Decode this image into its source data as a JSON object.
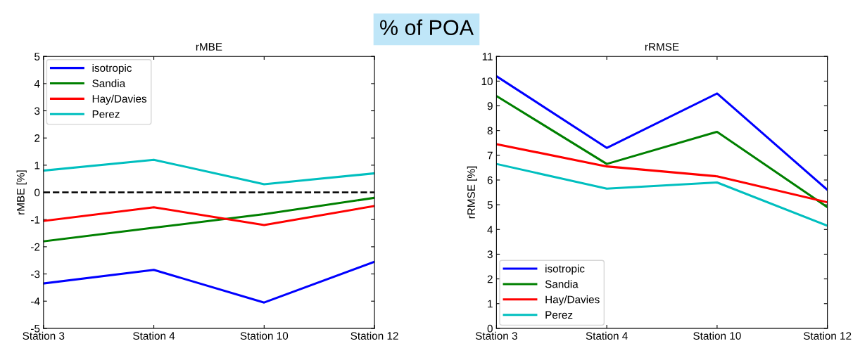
{
  "chart_data": [
    {
      "type": "line",
      "title": "rMBE",
      "ylabel": "rMBE [%]",
      "annotations": [
        "% of POA"
      ],
      "categories": [
        "Station 3",
        "Station 4",
        "Station 10",
        "Station 12"
      ],
      "series": [
        {
          "name": "isotropic",
          "color": "#0000ff",
          "values": [
            -3.35,
            -2.85,
            -4.05,
            -2.55
          ]
        },
        {
          "name": "Sandia",
          "color": "#008000",
          "values": [
            -1.8,
            -1.3,
            -0.8,
            -0.2
          ]
        },
        {
          "name": "Hay/Davies",
          "color": "#ff0000",
          "values": [
            -1.05,
            -0.55,
            -1.2,
            -0.5
          ]
        },
        {
          "name": "Perez",
          "color": "#00bfbf",
          "values": [
            0.8,
            1.2,
            0.3,
            0.7
          ]
        }
      ],
      "ylim": [
        -5,
        5
      ],
      "yticks": [
        -5,
        -4,
        -3,
        -2,
        -1,
        0,
        1,
        2,
        3,
        4,
        5
      ],
      "ref_lines": [
        {
          "axis": "y",
          "value": 0,
          "color": "#000000",
          "line_style": "dashed"
        }
      ],
      "legend": "top left",
      "grid": false,
      "line_style": "solid",
      "marker": "none"
    },
    {
      "type": "line",
      "title": "rRMSE",
      "ylabel": "rRMSE [%]",
      "categories": [
        "Station 3",
        "Station 4",
        "Station 10",
        "Station 12"
      ],
      "series": [
        {
          "name": "isotropic",
          "color": "#0000ff",
          "values": [
            10.2,
            7.3,
            9.5,
            5.6
          ]
        },
        {
          "name": "Sandia",
          "color": "#008000",
          "values": [
            9.4,
            6.65,
            7.95,
            4.9
          ]
        },
        {
          "name": "Hay/Davies",
          "color": "#ff0000",
          "values": [
            7.45,
            6.55,
            6.15,
            5.1
          ]
        },
        {
          "name": "Perez",
          "color": "#00bfbf",
          "values": [
            6.65,
            5.65,
            5.9,
            4.15
          ]
        }
      ],
      "ylim": [
        0,
        11
      ],
      "yticks": [
        0,
        1,
        2,
        3,
        4,
        5,
        6,
        7,
        8,
        9,
        10,
        11
      ],
      "legend": "bottom left",
      "grid": false,
      "line_style": "solid",
      "marker": "none"
    }
  ]
}
